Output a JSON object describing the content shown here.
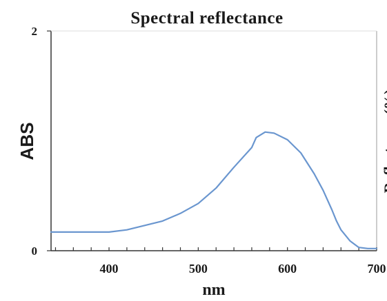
{
  "chart_data": {
    "type": "line",
    "title": "Spectral reflectance",
    "xlabel": "nm",
    "ylabel": "ABS",
    "y2label": "Reflectance (%)",
    "xlim": [
      335,
      700
    ],
    "ylim": [
      0,
      2
    ],
    "x_ticks": [
      400,
      500,
      600,
      700
    ],
    "x_tick_labels": [
      "400",
      "500",
      "600",
      "700"
    ],
    "y_ticks": [
      0,
      2
    ],
    "y_tick_labels": [
      "0",
      "2"
    ],
    "grid": false,
    "line_color": "#6a96cf",
    "axis_color": "#333333",
    "right_axis_color": "#bbbbbb",
    "series": [
      {
        "x": [
          335,
          350,
          375,
          400,
          420,
          440,
          460,
          480,
          500,
          520,
          540,
          560,
          565,
          575,
          585,
          600,
          615,
          630,
          640,
          650,
          655,
          660,
          670,
          680,
          690,
          700
        ],
        "values": [
          0.17,
          0.17,
          0.17,
          0.17,
          0.19,
          0.23,
          0.27,
          0.34,
          0.43,
          0.57,
          0.76,
          0.94,
          1.03,
          1.08,
          1.07,
          1.01,
          0.89,
          0.7,
          0.55,
          0.37,
          0.27,
          0.19,
          0.09,
          0.03,
          0.02,
          0.02
        ]
      }
    ]
  }
}
